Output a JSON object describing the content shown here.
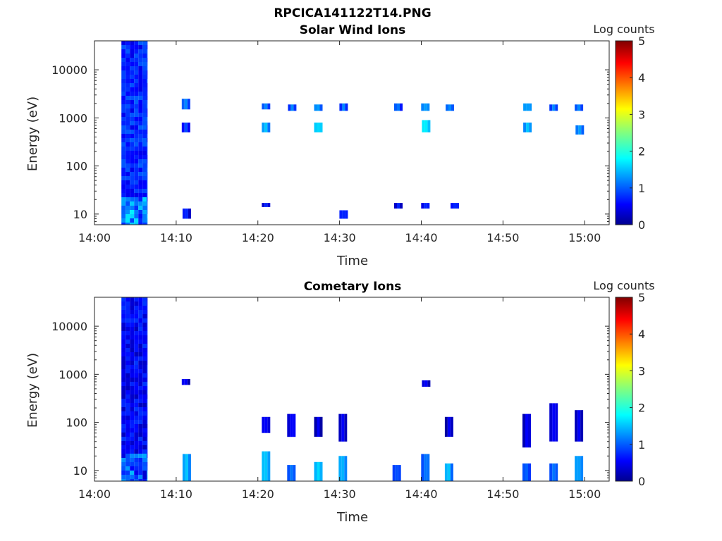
{
  "figure_title": "RPCICA141122T14.PNG",
  "chart_data": [
    {
      "type": "heatmap",
      "title": "Solar Wind Ions",
      "xlabel": "Time",
      "ylabel": "Energy (eV)",
      "x_ticks": [
        "14:00",
        "14:10",
        "14:20",
        "14:30",
        "14:40",
        "14:50",
        "15:00"
      ],
      "x_range_minutes": [
        0,
        63
      ],
      "y_ticks": [
        {
          "value": 10,
          "label": "10"
        },
        {
          "value": 100,
          "label": "100"
        },
        {
          "value": 1000,
          "label": "1000"
        },
        {
          "value": 10000,
          "label": "10000"
        }
      ],
      "y_scale": "log",
      "y_range": [
        6,
        40000
      ],
      "colorbar": {
        "title": "Log counts",
        "ticks": [
          "0",
          "1",
          "2",
          "3",
          "4",
          "5"
        ],
        "range": [
          0,
          5
        ]
      },
      "background_block": {
        "t_start": 3.3,
        "t_end": 6.5,
        "e_min": 6,
        "e_max": 40000,
        "level": 0.5
      },
      "bursts": [
        {
          "t": 11.2,
          "e_min": 1500,
          "e_max": 2500,
          "level": 1.3
        },
        {
          "t": 11.2,
          "e_min": 500,
          "e_max": 800,
          "level": 1.0
        },
        {
          "t": 11.3,
          "e_min": 8,
          "e_max": 13,
          "level": 0.8
        },
        {
          "t": 21.0,
          "e_min": 1500,
          "e_max": 2000,
          "level": 1.3
        },
        {
          "t": 21.0,
          "e_min": 500,
          "e_max": 800,
          "level": 1.6
        },
        {
          "t": 21.0,
          "e_min": 14,
          "e_max": 17,
          "level": 0.8
        },
        {
          "t": 24.2,
          "e_min": 1400,
          "e_max": 1900,
          "level": 1.3
        },
        {
          "t": 27.4,
          "e_min": 1400,
          "e_max": 1900,
          "level": 1.4
        },
        {
          "t": 27.4,
          "e_min": 500,
          "e_max": 800,
          "level": 1.7
        },
        {
          "t": 30.5,
          "e_min": 1400,
          "e_max": 2000,
          "level": 1.3
        },
        {
          "t": 30.5,
          "e_min": 8,
          "e_max": 12,
          "level": 0.8
        },
        {
          "t": 37.2,
          "e_min": 1400,
          "e_max": 2000,
          "level": 1.2
        },
        {
          "t": 37.2,
          "e_min": 13,
          "e_max": 17,
          "level": 0.8
        },
        {
          "t": 40.5,
          "e_min": 1400,
          "e_max": 2000,
          "level": 1.4
        },
        {
          "t": 40.6,
          "e_min": 500,
          "e_max": 900,
          "level": 1.8
        },
        {
          "t": 40.5,
          "e_min": 13,
          "e_max": 17,
          "level": 0.8
        },
        {
          "t": 43.5,
          "e_min": 1400,
          "e_max": 1900,
          "level": 1.3
        },
        {
          "t": 44.1,
          "e_min": 13,
          "e_max": 17,
          "level": 0.8
        },
        {
          "t": 53.0,
          "e_min": 1400,
          "e_max": 2000,
          "level": 1.4
        },
        {
          "t": 53.0,
          "e_min": 500,
          "e_max": 800,
          "level": 1.6
        },
        {
          "t": 56.2,
          "e_min": 1400,
          "e_max": 1900,
          "level": 1.3
        },
        {
          "t": 59.3,
          "e_min": 1400,
          "e_max": 1900,
          "level": 1.3
        },
        {
          "t": 59.4,
          "e_min": 450,
          "e_max": 700,
          "level": 1.4
        }
      ]
    },
    {
      "type": "heatmap",
      "title": "Cometary Ions",
      "xlabel": "Time",
      "ylabel": "Energy (eV)",
      "x_ticks": [
        "14:00",
        "14:10",
        "14:20",
        "14:30",
        "14:40",
        "14:50",
        "15:00"
      ],
      "x_range_minutes": [
        0,
        63
      ],
      "y_ticks": [
        {
          "value": 10,
          "label": "10"
        },
        {
          "value": 100,
          "label": "100"
        },
        {
          "value": 1000,
          "label": "1000"
        },
        {
          "value": 10000,
          "label": "10000"
        }
      ],
      "y_scale": "log",
      "y_range": [
        6,
        40000
      ],
      "colorbar": {
        "title": "Log counts",
        "ticks": [
          "0",
          "1",
          "2",
          "3",
          "4",
          "5"
        ],
        "range": [
          0,
          5
        ]
      },
      "background_block": {
        "t_start": 3.3,
        "t_end": 6.5,
        "e_min": 6,
        "e_max": 40000,
        "level": 0.3
      },
      "bursts": [
        {
          "t": 11.2,
          "e_min": 600,
          "e_max": 800,
          "level": 0.6
        },
        {
          "t": 11.3,
          "e_min": 6,
          "e_max": 22,
          "level": 1.6
        },
        {
          "t": 21.0,
          "e_min": 6,
          "e_max": 25,
          "level": 1.6
        },
        {
          "t": 21.0,
          "e_min": 60,
          "e_max": 130,
          "level": 0.6
        },
        {
          "t": 24.1,
          "e_min": 6,
          "e_max": 13,
          "level": 1.2
        },
        {
          "t": 24.1,
          "e_min": 50,
          "e_max": 150,
          "level": 0.6
        },
        {
          "t": 27.4,
          "e_min": 6,
          "e_max": 15,
          "level": 1.7
        },
        {
          "t": 27.4,
          "e_min": 50,
          "e_max": 130,
          "level": 0.6
        },
        {
          "t": 30.4,
          "e_min": 6,
          "e_max": 20,
          "level": 1.5
        },
        {
          "t": 30.4,
          "e_min": 40,
          "e_max": 150,
          "level": 0.6
        },
        {
          "t": 37.0,
          "e_min": 6,
          "e_max": 13,
          "level": 1.0
        },
        {
          "t": 40.5,
          "e_min": 6,
          "e_max": 22,
          "level": 1.2
        },
        {
          "t": 40.6,
          "e_min": 550,
          "e_max": 750,
          "level": 0.6
        },
        {
          "t": 43.4,
          "e_min": 6,
          "e_max": 14,
          "level": 1.6
        },
        {
          "t": 43.4,
          "e_min": 50,
          "e_max": 130,
          "level": 0.6
        },
        {
          "t": 52.9,
          "e_min": 6,
          "e_max": 14,
          "level": 1.1
        },
        {
          "t": 52.9,
          "e_min": 30,
          "e_max": 150,
          "level": 0.6
        },
        {
          "t": 56.2,
          "e_min": 6,
          "e_max": 14,
          "level": 1.2
        },
        {
          "t": 56.2,
          "e_min": 40,
          "e_max": 250,
          "level": 0.6
        },
        {
          "t": 59.3,
          "e_min": 6,
          "e_max": 20,
          "level": 1.4
        },
        {
          "t": 59.3,
          "e_min": 40,
          "e_max": 180,
          "level": 0.6
        }
      ]
    }
  ]
}
